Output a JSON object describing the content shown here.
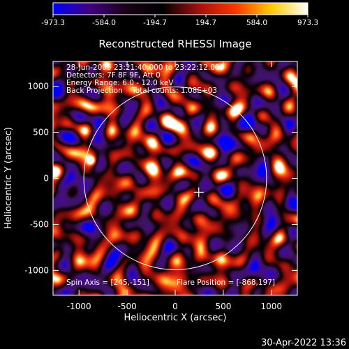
{
  "chart_data": {
    "type": "heatmap",
    "title": "Reconstructed RHESSI Image",
    "xlabel": "Heliocentric X (arcsec)",
    "ylabel": "Heliocentric Y (arcsec)",
    "xlim": [
      -1270,
      1270
    ],
    "ylim": [
      -1270,
      1270
    ],
    "xticks": [
      -1000,
      -500,
      0,
      500,
      1000
    ],
    "yticks": [
      -1000,
      -500,
      0,
      500,
      1000
    ],
    "xtick_labels": [
      "-1000",
      "-500",
      "0",
      "500",
      "1000"
    ],
    "ytick_labels": [
      "-1000",
      "-500",
      "0",
      "500",
      "1000"
    ],
    "colorbar": {
      "range": [
        -973.3,
        973.3
      ],
      "tick_values": [
        -973.3,
        -584.0,
        -194.7,
        194.7,
        584.0,
        973.3
      ],
      "tick_labels": [
        "-973.3",
        "-584.0",
        "-194.7",
        "194.7",
        "584.0",
        "973.3"
      ],
      "colors": [
        "#0000ff",
        "#400080",
        "#1a0018",
        "#000000",
        "#a01010",
        "#ff3300",
        "#ffcc00",
        "#ffffff"
      ]
    },
    "annotations": [
      "28-Jun-2005 23:21:40.000 to 23:22:12.000",
      "Detectors: 7F 8F 9F, Att 0",
      "Energy Range: 6.0 - 12.0 keV",
      "Back Projection    Total counts: 1.08E+03"
    ],
    "footer_left": "Spin Axis = [245,-151]",
    "footer_right": "Flare Position = [-868,197]",
    "solar_disk_radius": 950,
    "spin_axis": [
      245,
      -151
    ],
    "flare_position": [
      -868,
      197
    ],
    "bright_source": {
      "x": -868,
      "y": 197,
      "value": 973.3
    }
  },
  "timestamp": "30-Apr-2022 13:36"
}
